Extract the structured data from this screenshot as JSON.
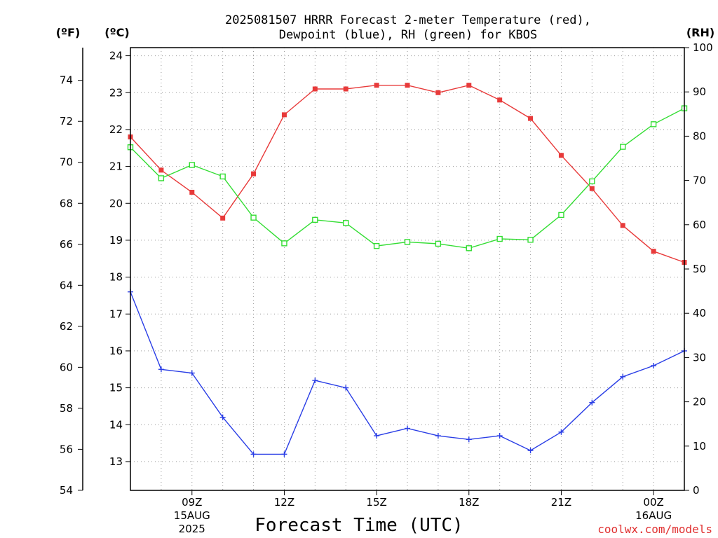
{
  "chart_data": {
    "type": "line",
    "title_line1": "2025081507 HRRR Forecast 2-meter Temperature (red),",
    "title_line2": "Dewpoint (blue), RH (green) for KBOS",
    "xlabel": "Forecast Time (UTC)",
    "credit": "coolwx.com/models",
    "units": {
      "fahrenheit": "(ºF)",
      "celsius": "(ºC)",
      "rh": "(RH)"
    },
    "x_hours": [
      7,
      8,
      9,
      10,
      11,
      12,
      13,
      14,
      15,
      16,
      17,
      18,
      19,
      20,
      21,
      22,
      23,
      24,
      25
    ],
    "x_range": [
      7,
      25
    ],
    "x_ticks": [
      {
        "hour": 9,
        "label": "09Z",
        "sub1": "15AUG",
        "sub2": "2025"
      },
      {
        "hour": 12,
        "label": "12Z",
        "sub1": "",
        "sub2": ""
      },
      {
        "hour": 15,
        "label": "15Z",
        "sub1": "",
        "sub2": ""
      },
      {
        "hour": 18,
        "label": "18Z",
        "sub1": "",
        "sub2": ""
      },
      {
        "hour": 21,
        "label": "21Z",
        "sub1": "",
        "sub2": ""
      },
      {
        "hour": 24,
        "label": "00Z",
        "sub1": "16AUG",
        "sub2": ""
      }
    ],
    "celsius_range": [
      12.22,
      24.22
    ],
    "celsius_ticks": [
      13,
      14,
      15,
      16,
      17,
      18,
      19,
      20,
      21,
      22,
      23,
      24
    ],
    "fahrenheit_ticks": [
      54,
      56,
      58,
      60,
      62,
      64,
      66,
      68,
      70,
      72,
      74
    ],
    "rh_range": [
      0,
      100
    ],
    "rh_ticks": [
      0,
      10,
      20,
      30,
      40,
      50,
      60,
      70,
      80,
      90,
      100
    ],
    "series": [
      {
        "name": "Temperature",
        "axis": "celsius",
        "color": "#e83a3a",
        "marker": "filled-square",
        "values": [
          21.8,
          20.9,
          20.3,
          19.6,
          20.8,
          22.4,
          23.1,
          23.1,
          23.2,
          23.2,
          23.0,
          23.2,
          22.8,
          22.3,
          21.3,
          20.4,
          19.4,
          18.7,
          18.4
        ]
      },
      {
        "name": "Dewpoint",
        "axis": "celsius",
        "color": "#2a3ee6",
        "marker": "plus",
        "values": [
          17.6,
          15.5,
          15.4,
          14.2,
          13.2,
          13.2,
          15.2,
          15.0,
          13.7,
          13.9,
          13.7,
          13.6,
          13.7,
          13.3,
          13.8,
          14.6,
          15.3,
          15.6,
          16.0
        ]
      },
      {
        "name": "RH",
        "axis": "rh",
        "color": "#33dd33",
        "marker": "open-square",
        "values": [
          77.5,
          70.5,
          73.5,
          70.9,
          61.6,
          55.8,
          61.1,
          60.4,
          55.2,
          56.1,
          55.7,
          54.7,
          56.8,
          56.6,
          62.2,
          69.8,
          77.6,
          82.7,
          86.3
        ]
      }
    ],
    "grid": true,
    "legend": "none"
  }
}
